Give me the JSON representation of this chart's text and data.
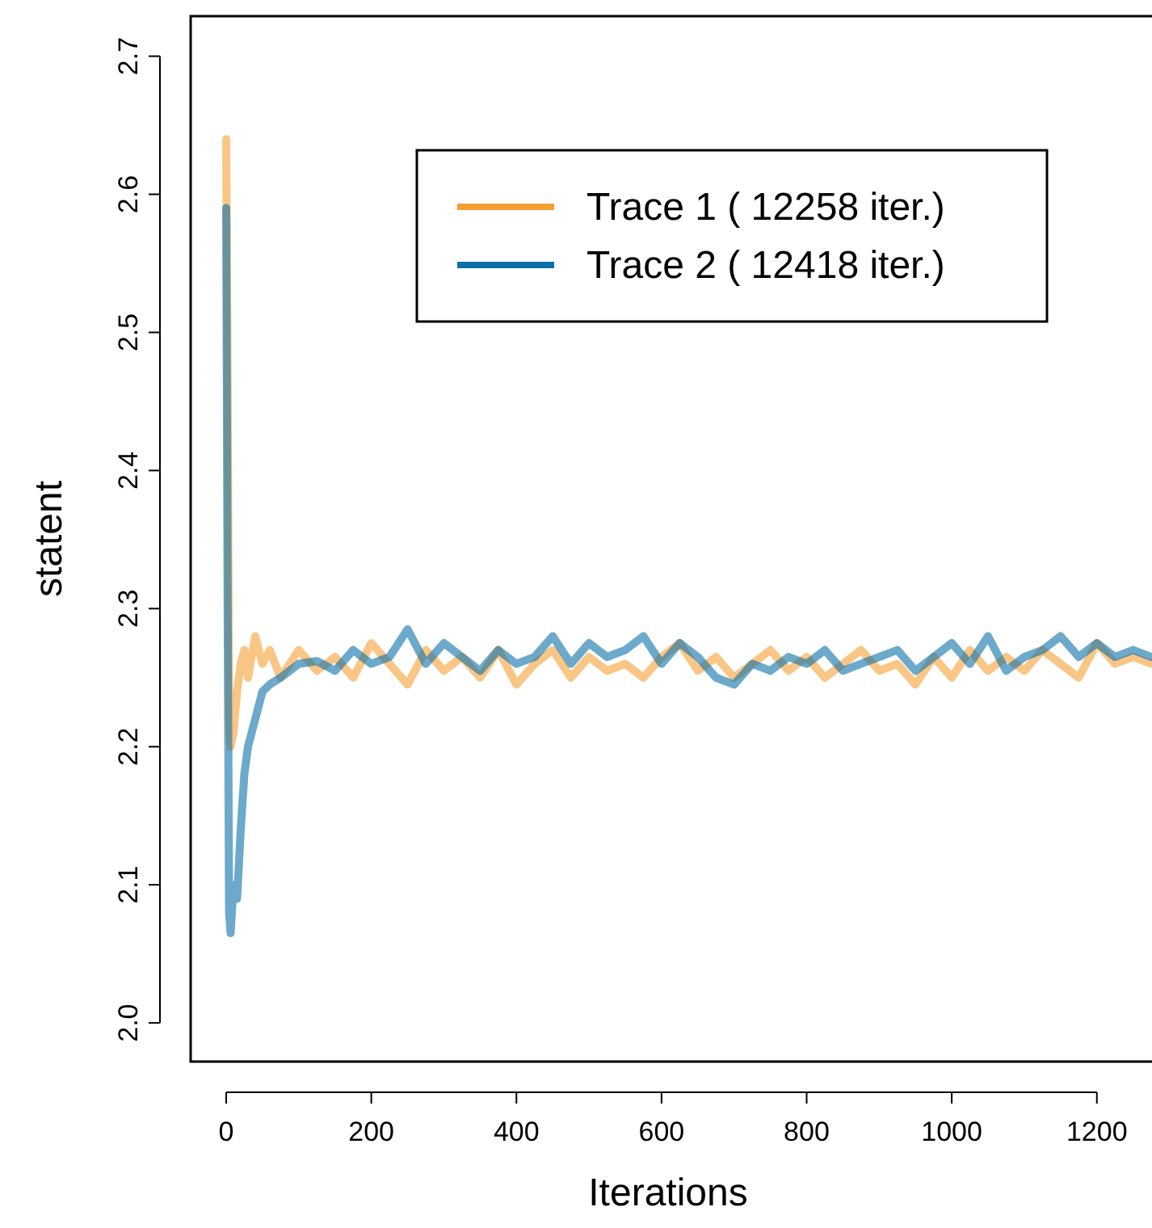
{
  "chart_data": {
    "type": "line",
    "xlabel": "Iterations",
    "ylabel": "statent",
    "xlim": [
      -49,
      1276
    ],
    "ylim": [
      1.972,
      2.729
    ],
    "xticks": [
      0,
      200,
      400,
      600,
      800,
      1000,
      1200
    ],
    "yticks": [
      {
        "value": 2,
        "label": "2.0"
      },
      {
        "value": 2.1,
        "label": "2.1"
      },
      {
        "value": 2.2,
        "label": "2.2"
      },
      {
        "value": 2.3,
        "label": "2.3"
      },
      {
        "value": 2.4,
        "label": "2.4"
      },
      {
        "value": 2.5,
        "label": "2.5"
      },
      {
        "value": 2.6,
        "label": "2.6"
      },
      {
        "value": 2.7,
        "label": "2.7"
      }
    ],
    "grid": false,
    "legend": "top right",
    "marker": "none",
    "line_style": "solid",
    "series": [
      {
        "name": "Trace 1 ( 12258 iter.)",
        "color": "#f5a033",
        "x": [
          0,
          2,
          4,
          6,
          10,
          15,
          20,
          25,
          30,
          40,
          50,
          60,
          75,
          100,
          125,
          150,
          175,
          200,
          225,
          250,
          275,
          300,
          325,
          350,
          375,
          400,
          425,
          450,
          475,
          500,
          525,
          550,
          575,
          600,
          625,
          650,
          675,
          700,
          725,
          750,
          775,
          800,
          825,
          850,
          875,
          900,
          925,
          950,
          975,
          1000,
          1025,
          1050,
          1075,
          1100,
          1125,
          1150,
          1175,
          1200,
          1225,
          1250,
          1275
        ],
        "values": [
          2.64,
          2.45,
          2.22,
          2.2,
          2.21,
          2.24,
          2.26,
          2.27,
          2.25,
          2.28,
          2.26,
          2.27,
          2.25,
          2.27,
          2.255,
          2.265,
          2.25,
          2.275,
          2.26,
          2.245,
          2.27,
          2.255,
          2.265,
          2.25,
          2.27,
          2.245,
          2.26,
          2.27,
          2.25,
          2.265,
          2.255,
          2.26,
          2.25,
          2.265,
          2.275,
          2.255,
          2.265,
          2.25,
          2.26,
          2.27,
          2.255,
          2.265,
          2.25,
          2.26,
          2.27,
          2.255,
          2.26,
          2.245,
          2.265,
          2.25,
          2.27,
          2.255,
          2.265,
          2.255,
          2.27,
          2.26,
          2.25,
          2.275,
          2.26,
          2.265,
          2.26
        ]
      },
      {
        "name": "Trace 2 ( 12418 iter.)",
        "color": "#0a6fa8",
        "x": [
          0,
          2,
          4,
          6,
          9,
          12,
          15,
          20,
          25,
          30,
          40,
          50,
          60,
          75,
          100,
          125,
          150,
          175,
          200,
          225,
          250,
          275,
          300,
          325,
          350,
          375,
          400,
          425,
          450,
          475,
          500,
          525,
          550,
          575,
          600,
          625,
          650,
          675,
          700,
          725,
          750,
          775,
          800,
          825,
          850,
          875,
          900,
          925,
          950,
          975,
          1000,
          1025,
          1050,
          1075,
          1100,
          1125,
          1150,
          1175,
          1200,
          1225,
          1250,
          1275
        ],
        "values": [
          2.59,
          2.3,
          2.08,
          2.065,
          2.09,
          2.1,
          2.09,
          2.14,
          2.18,
          2.2,
          2.22,
          2.24,
          2.245,
          2.25,
          2.26,
          2.262,
          2.255,
          2.27,
          2.26,
          2.265,
          2.285,
          2.26,
          2.275,
          2.265,
          2.255,
          2.27,
          2.26,
          2.265,
          2.28,
          2.26,
          2.275,
          2.265,
          2.27,
          2.28,
          2.26,
          2.275,
          2.265,
          2.25,
          2.245,
          2.26,
          2.255,
          2.265,
          2.26,
          2.27,
          2.255,
          2.26,
          2.265,
          2.27,
          2.255,
          2.265,
          2.275,
          2.26,
          2.28,
          2.255,
          2.265,
          2.27,
          2.28,
          2.265,
          2.275,
          2.265,
          2.27,
          2.265
        ]
      }
    ]
  }
}
